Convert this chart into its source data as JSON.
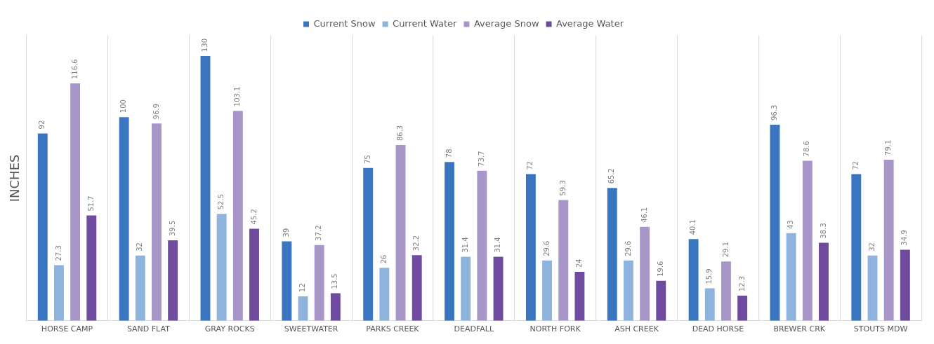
{
  "chart_data": {
    "type": "bar",
    "ylabel": "INCHES",
    "categories": [
      "HORSE CAMP",
      "SAND FLAT",
      "GRAY ROCKS",
      "SWEETWATER",
      "PARKS CREEK",
      "DEADFALL",
      "NORTH FORK",
      "ASH CREEK",
      "DEAD HORSE",
      "BREWER CRK",
      "STOUTS MDW"
    ],
    "series": [
      {
        "name": "Current Snow",
        "color": "#3a75c0",
        "values": [
          92,
          100,
          130,
          39,
          75,
          78,
          72,
          65.2,
          40.1,
          96.3,
          72
        ]
      },
      {
        "name": "Current Water",
        "color": "#8eb4dd",
        "values": [
          27.3,
          32,
          52.5,
          12,
          26,
          31.4,
          29.6,
          29.6,
          15.9,
          43,
          32
        ]
      },
      {
        "name": "Average Snow",
        "color": "#a996c9",
        "values": [
          116.6,
          96.9,
          103.1,
          37.2,
          86.3,
          73.7,
          59.3,
          46.1,
          29.1,
          78.6,
          79.1
        ]
      },
      {
        "name": "Average Water",
        "color": "#6e4b9e",
        "values": [
          51.7,
          39.5,
          45.2,
          13.5,
          32.2,
          31.4,
          24,
          19.6,
          12.3,
          38.3,
          34.9
        ]
      }
    ],
    "data_labels": true,
    "grid": "x",
    "legend": "top"
  }
}
